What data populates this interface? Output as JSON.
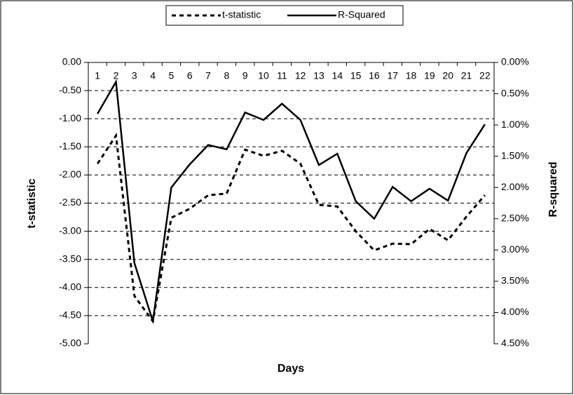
{
  "chart_data": {
    "type": "line",
    "x_label": "Days",
    "y_label": "t-statistic",
    "y2_label": "R-squared",
    "categories": [
      "1",
      "2",
      "3",
      "4",
      "5",
      "6",
      "7",
      "8",
      "9",
      "10",
      "11",
      "12",
      "13",
      "14",
      "15",
      "16",
      "17",
      "18",
      "19",
      "20",
      "21",
      "22"
    ],
    "series": [
      {
        "name": "t-statistic",
        "color": "#000000",
        "dash": true,
        "values": [
          -1.8,
          -1.3,
          -4.15,
          -4.6,
          -2.76,
          -2.6,
          -2.36,
          -2.33,
          -1.55,
          -1.66,
          -1.57,
          -1.8,
          -2.53,
          -2.56,
          -3.0,
          -3.34,
          -3.22,
          -3.23,
          -2.96,
          -3.16,
          -2.74,
          -2.36
        ]
      },
      {
        "name": "R-Squared",
        "color": "#000000",
        "dash": false,
        "axis": "y2",
        "values": [
          0.82,
          0.31,
          3.21,
          4.14,
          2.0,
          1.63,
          1.32,
          1.39,
          0.8,
          0.92,
          0.66,
          0.92,
          1.64,
          1.46,
          2.22,
          2.5,
          1.99,
          2.22,
          2.02,
          2.21,
          1.45,
          0.99
        ]
      }
    ],
    "ylim": [
      -5,
      0
    ],
    "yticks": [
      {
        "value": 0,
        "label": "0.00"
      },
      {
        "value": -0.5,
        "label": "-0.50"
      },
      {
        "value": -1,
        "label": "-1.00"
      },
      {
        "value": -1.5,
        "label": "-1.50"
      },
      {
        "value": -2,
        "label": "-2.00"
      },
      {
        "value": -2.5,
        "label": "-2.50"
      },
      {
        "value": -3,
        "label": "-3.00"
      },
      {
        "value": -3.5,
        "label": "-3.50"
      },
      {
        "value": -4,
        "label": "-4.00"
      },
      {
        "value": -4.5,
        "label": "-4.50"
      },
      {
        "value": -5,
        "label": "-5.00"
      }
    ],
    "y2lim": [
      0,
      4.5
    ],
    "y2_reversed": true,
    "y2ticks": [
      {
        "value": 0,
        "label": "0.00%"
      },
      {
        "value": 0.5,
        "label": "0.50%"
      },
      {
        "value": 1,
        "label": "1.00%"
      },
      {
        "value": 1.5,
        "label": "1.50%"
      },
      {
        "value": 2,
        "label": "2.00%"
      },
      {
        "value": 2.5,
        "label": "2.50%"
      },
      {
        "value": 3,
        "label": "3.00%"
      },
      {
        "value": 3.5,
        "label": "3.50%"
      },
      {
        "value": 4,
        "label": "4.00%"
      },
      {
        "value": 4.5,
        "label": "4.50%"
      }
    ],
    "grid": true,
    "legend": "top"
  }
}
